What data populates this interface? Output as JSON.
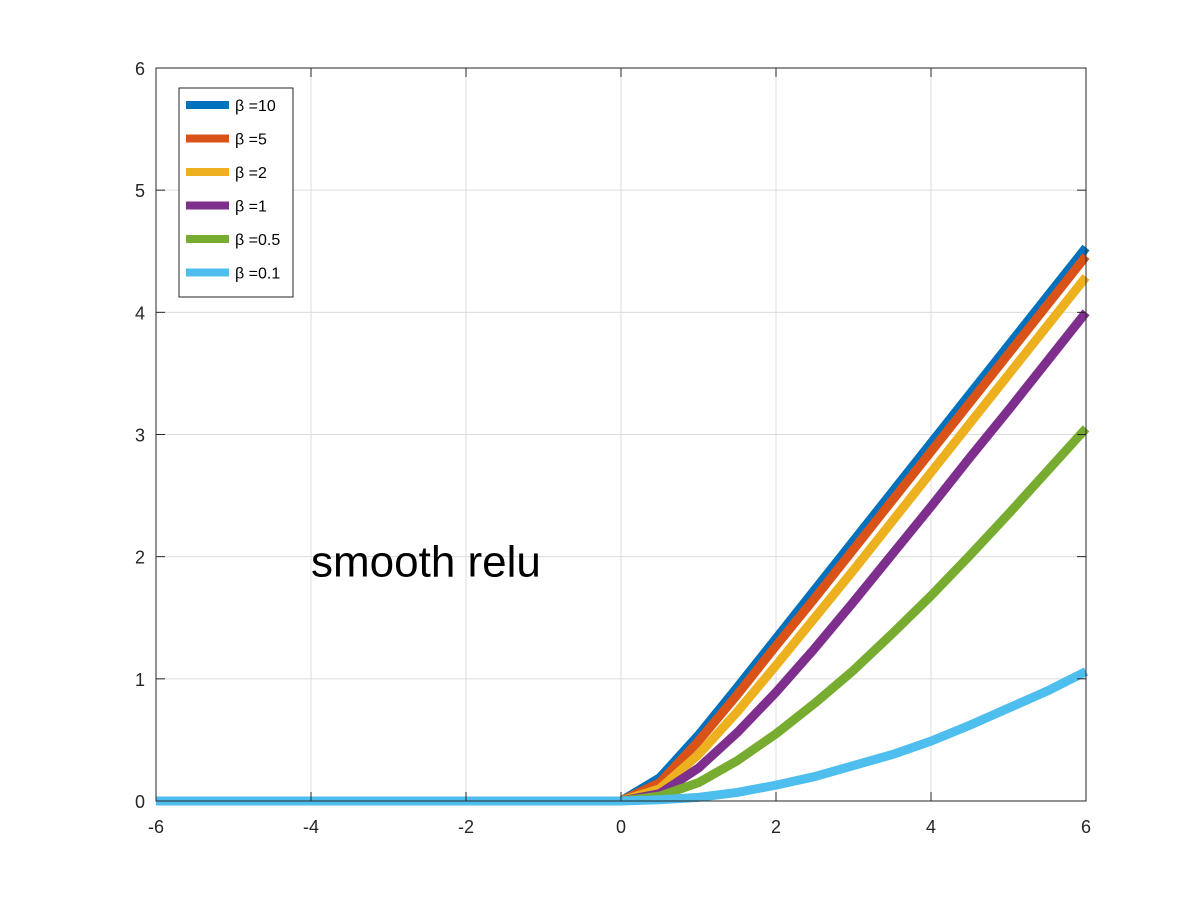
{
  "chart_data": {
    "type": "line",
    "title": "",
    "xlabel": "",
    "ylabel": "",
    "xlim": [
      -6,
      6
    ],
    "ylim": [
      0,
      6
    ],
    "grid": true,
    "legend_position": "top-left",
    "x_ticks": [
      -6,
      -4,
      -2,
      0,
      2,
      4,
      6
    ],
    "y_ticks": [
      0,
      1,
      2,
      3,
      4,
      5,
      6
    ],
    "x_tick_labels": [
      "-6",
      "-4",
      "-2",
      "0",
      "2",
      "4",
      "6"
    ],
    "y_tick_labels": [
      "0",
      "1",
      "2",
      "3",
      "4",
      "5",
      "6"
    ],
    "annotation": {
      "text": "smooth relu",
      "x": -4,
      "y": 2
    },
    "x": [
      -6,
      -5,
      -4,
      -3,
      -2,
      -1,
      0,
      0.5,
      1,
      1.5,
      2,
      2.5,
      3,
      3.5,
      4,
      4.5,
      5,
      5.5,
      6
    ],
    "series": [
      {
        "name": "β =10",
        "color": "#0072BD",
        "values": [
          0,
          0,
          0,
          0,
          0,
          0,
          0,
          0.19,
          0.54,
          0.93,
          1.33,
          1.73,
          2.13,
          2.53,
          2.93,
          3.33,
          3.73,
          4.13,
          4.53
        ]
      },
      {
        "name": "β =5",
        "color": "#D95319",
        "values": [
          0,
          0,
          0,
          0,
          0,
          0,
          0,
          0.15,
          0.49,
          0.87,
          1.27,
          1.66,
          2.06,
          2.46,
          2.86,
          3.26,
          3.66,
          4.06,
          4.46
        ]
      },
      {
        "name": "β =2",
        "color": "#EDB120",
        "values": [
          0,
          0,
          0,
          0,
          0,
          0,
          0,
          0.1,
          0.38,
          0.73,
          1.11,
          1.5,
          1.89,
          2.29,
          2.69,
          3.09,
          3.49,
          3.89,
          4.29
        ]
      },
      {
        "name": "β =1",
        "color": "#7E2F8E",
        "values": [
          0,
          0,
          0,
          0,
          0,
          0,
          0,
          0.06,
          0.27,
          0.56,
          0.89,
          1.25,
          1.63,
          2.02,
          2.41,
          2.81,
          3.2,
          3.6,
          4
        ]
      },
      {
        "name": "β =0.5",
        "color": "#77AC30",
        "values": [
          0,
          0,
          0,
          0,
          0,
          0,
          0,
          0.04,
          0.15,
          0.33,
          0.55,
          0.8,
          1.07,
          1.37,
          1.68,
          2.01,
          2.35,
          2.7,
          3.05
        ]
      },
      {
        "name": "β =0.1",
        "color": "#4DBEEE",
        "values": [
          0,
          0,
          0,
          0,
          0,
          0,
          0,
          0.01,
          0.03,
          0.07,
          0.13,
          0.2,
          0.29,
          0.38,
          0.49,
          0.62,
          0.76,
          0.9,
          1.06
        ]
      }
    ]
  }
}
